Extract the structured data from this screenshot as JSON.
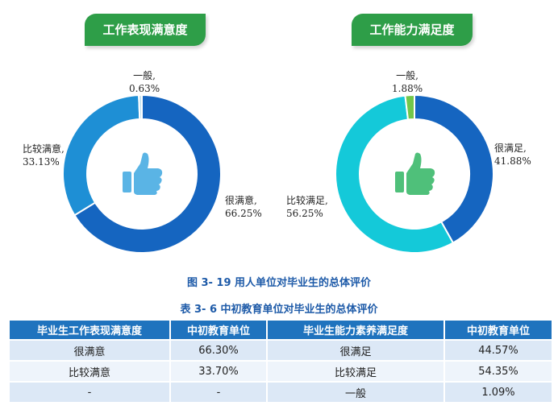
{
  "left_panel": {
    "title": "工作表现满意度",
    "labels": {
      "yiban": {
        "name": "一般,",
        "value": "0.63%"
      },
      "bijiao": {
        "name": "比较满意,",
        "value": "33.13%"
      },
      "hen": {
        "name": "很满意,",
        "value": "66.25%"
      }
    }
  },
  "right_panel": {
    "title": "工作能力满足度",
    "labels": {
      "yiban": {
        "name": "一般,",
        "value": "1.88%"
      },
      "bijiao": {
        "name": "比较满足,",
        "value": "56.25%"
      },
      "hen": {
        "name": "很满足,",
        "value": "41.88%"
      }
    }
  },
  "figure_caption": "图 3- 19  用人单位对毕业生的总体评价",
  "table_caption": "表 3- 6  中初教育单位对毕业生的总体评价",
  "table": {
    "headers": [
      "毕业生工作表现满意度",
      "中初教育单位",
      "毕业生能力素养满足度",
      "中初教育单位"
    ],
    "rows": [
      [
        "很满意",
        "66.30%",
        "很满足",
        "44.57%"
      ],
      [
        "比较满意",
        "33.70%",
        "比较满足",
        "54.35%"
      ],
      [
        "-",
        "-",
        "一般",
        "1.09%"
      ]
    ]
  },
  "chart_data": [
    {
      "type": "pie",
      "title": "工作表现满意度",
      "categories": [
        "很满意",
        "比较满意",
        "一般"
      ],
      "values": [
        66.25,
        33.13,
        0.63
      ],
      "colors": [
        "#1565c0",
        "#1e8fd5",
        "#bfe0ef"
      ],
      "icon": "thumbs-up-icon",
      "icon_color": "#5ab4e5"
    },
    {
      "type": "pie",
      "title": "工作能力满足度",
      "categories": [
        "很满足",
        "比较满足",
        "一般"
      ],
      "values": [
        41.88,
        56.25,
        1.88
      ],
      "colors": [
        "#1565c0",
        "#14c9d9",
        "#72c74a"
      ],
      "icon": "thumbs-up-icon",
      "icon_color": "#4fc07a"
    }
  ]
}
